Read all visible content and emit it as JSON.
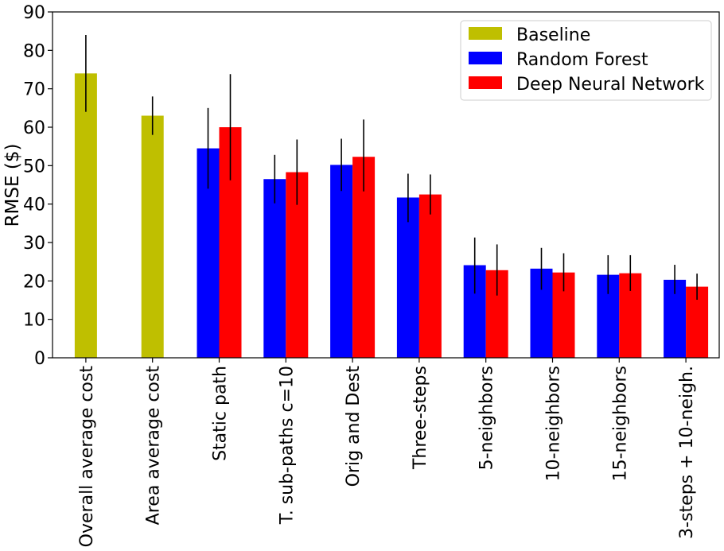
{
  "chart_data": {
    "type": "bar",
    "title": "",
    "xlabel": "",
    "ylabel": "RMSE ($)",
    "ylim": [
      0,
      90
    ],
    "yticks": [
      "0",
      "10",
      "20",
      "30",
      "40",
      "50",
      "60",
      "70",
      "80",
      "90"
    ],
    "grid": false,
    "legend_position": "top-right",
    "categories": [
      "Overall average cost",
      "Area average cost",
      "Static path",
      "T. sub-paths c=10",
      "Orig and Dest",
      "Three-steps",
      "5-neighbors",
      "10-neighbors",
      "15-neighbors",
      "3-steps + 10-neigh."
    ],
    "series": [
      {
        "name": "Baseline",
        "color": "#bfbf00",
        "values": [
          74,
          63,
          null,
          null,
          null,
          null,
          null,
          null,
          null,
          null
        ],
        "error_low": [
          64,
          58,
          null,
          null,
          null,
          null,
          null,
          null,
          null,
          null
        ],
        "error_high": [
          84,
          68,
          null,
          null,
          null,
          null,
          null,
          null,
          null,
          null
        ]
      },
      {
        "name": "Random Forest",
        "color": "#0000ff",
        "values": [
          null,
          null,
          54.5,
          46.5,
          50.2,
          41.7,
          24.1,
          23.2,
          21.6,
          20.3
        ],
        "error_low": [
          null,
          null,
          44,
          40.2,
          43.4,
          35.3,
          16.7,
          17.7,
          16.6,
          16.6
        ],
        "error_high": [
          null,
          null,
          65,
          52.8,
          57,
          47.9,
          31.3,
          28.6,
          26.7,
          24.2
        ]
      },
      {
        "name": "Deep Neural Network",
        "color": "#ff0000",
        "values": [
          null,
          null,
          60,
          48.3,
          52.3,
          42.5,
          22.8,
          22.2,
          22,
          18.5
        ],
        "error_low": [
          null,
          null,
          46.2,
          39.8,
          43.3,
          37.3,
          16.2,
          17.3,
          17.4,
          15.1
        ],
        "error_high": [
          null,
          null,
          73.8,
          56.8,
          62,
          47.7,
          29.5,
          27.2,
          26.7,
          21.9
        ]
      }
    ]
  }
}
